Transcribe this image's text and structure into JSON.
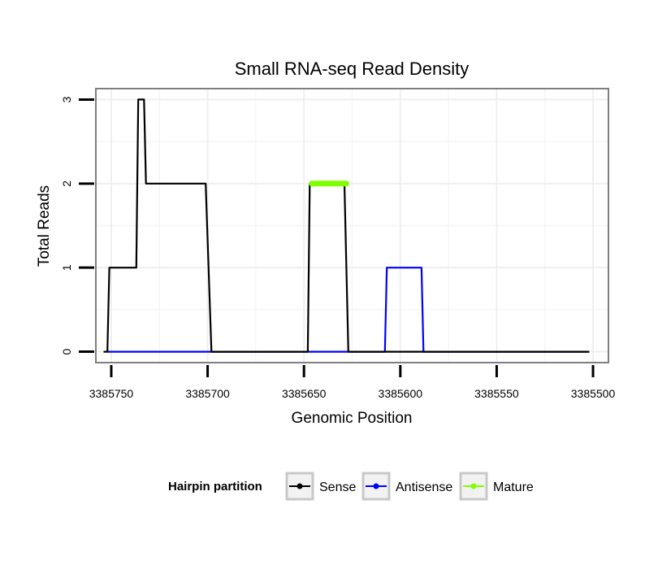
{
  "chart_data": {
    "type": "line",
    "title": "Small RNA-seq Read Density",
    "xlabel": "Genomic Position",
    "ylabel": "Total Reads",
    "x_reversed": true,
    "xlim": [
      3385758,
      3385492
    ],
    "ylim": [
      -0.13,
      3.13
    ],
    "x_ticks": [
      3385750,
      3385700,
      3385650,
      3385600,
      3385550,
      3385500
    ],
    "x_tick_labels": [
      "3385750",
      "3385700",
      "3385650",
      "3385600",
      "3385550",
      "3385500"
    ],
    "y_ticks": [
      0,
      1,
      2,
      3
    ],
    "y_tick_labels": [
      "0",
      "1",
      "2",
      "3"
    ],
    "grid": true,
    "legend": {
      "title": "Hairpin partition",
      "position": "bottom",
      "entries": [
        "Sense",
        "Antisense",
        "Mature"
      ]
    },
    "series": [
      {
        "name": "Sense",
        "color": "#000000",
        "x": [
          3385754,
          3385752,
          3385751,
          3385737,
          3385736,
          3385733,
          3385732,
          3385728,
          3385727,
          3385701,
          3385698,
          3385648,
          3385647,
          3385629,
          3385627,
          3385502
        ],
        "y": [
          0,
          0,
          1,
          1,
          3,
          3,
          2,
          2,
          2,
          2,
          0,
          0,
          2,
          2,
          0,
          0
        ]
      },
      {
        "name": "Antisense",
        "color": "#0000ff",
        "x": [
          3385752,
          3385608,
          3385607,
          3385589,
          3385588,
          3385502
        ],
        "y": [
          0,
          0,
          1,
          1,
          0,
          0
        ]
      },
      {
        "name": "Mature",
        "color": "#7fff00",
        "x": [
          3385646,
          3385628
        ],
        "y": [
          2,
          2
        ]
      }
    ]
  }
}
